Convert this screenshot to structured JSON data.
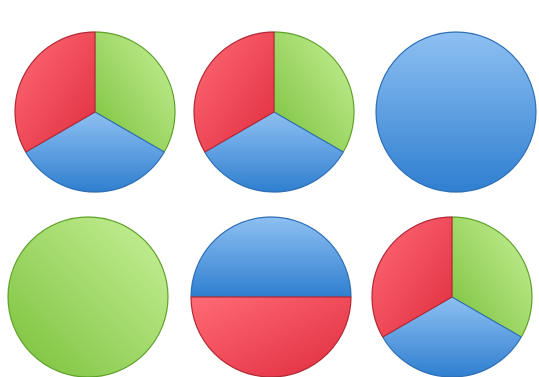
{
  "colors": {
    "green": "#8ed24e",
    "blue": "#4a8fd8",
    "red": "#e8404f",
    "outline_green": "#5fa22a",
    "outline_blue": "#2f6fb5",
    "outline_red": "#b02a36"
  },
  "chart_data": [
    {
      "type": "pie",
      "slices": [
        {
          "label": "",
          "value": 1,
          "color": "green"
        },
        {
          "label": "",
          "value": 1,
          "color": "blue"
        },
        {
          "label": "",
          "value": 1,
          "color": "red"
        }
      ]
    },
    {
      "type": "pie",
      "slices": [
        {
          "label": "",
          "value": 1,
          "color": "green"
        },
        {
          "label": "",
          "value": 1,
          "color": "blue"
        },
        {
          "label": "",
          "value": 1,
          "color": "red"
        }
      ]
    },
    {
      "type": "pie",
      "slices": [
        {
          "label": "",
          "value": 1,
          "color": "blue"
        }
      ]
    },
    {
      "type": "pie",
      "slices": [
        {
          "label": "",
          "value": 1,
          "color": "green"
        }
      ]
    },
    {
      "type": "pie",
      "slices": [
        {
          "label": "",
          "value": 1,
          "color": "blue"
        },
        {
          "label": "",
          "value": 1,
          "color": "red"
        }
      ]
    },
    {
      "type": "pie",
      "slices": [
        {
          "label": "",
          "value": 1,
          "color": "green"
        },
        {
          "label": "",
          "value": 1,
          "color": "blue"
        },
        {
          "label": "",
          "value": 1,
          "color": "red"
        }
      ]
    }
  ]
}
